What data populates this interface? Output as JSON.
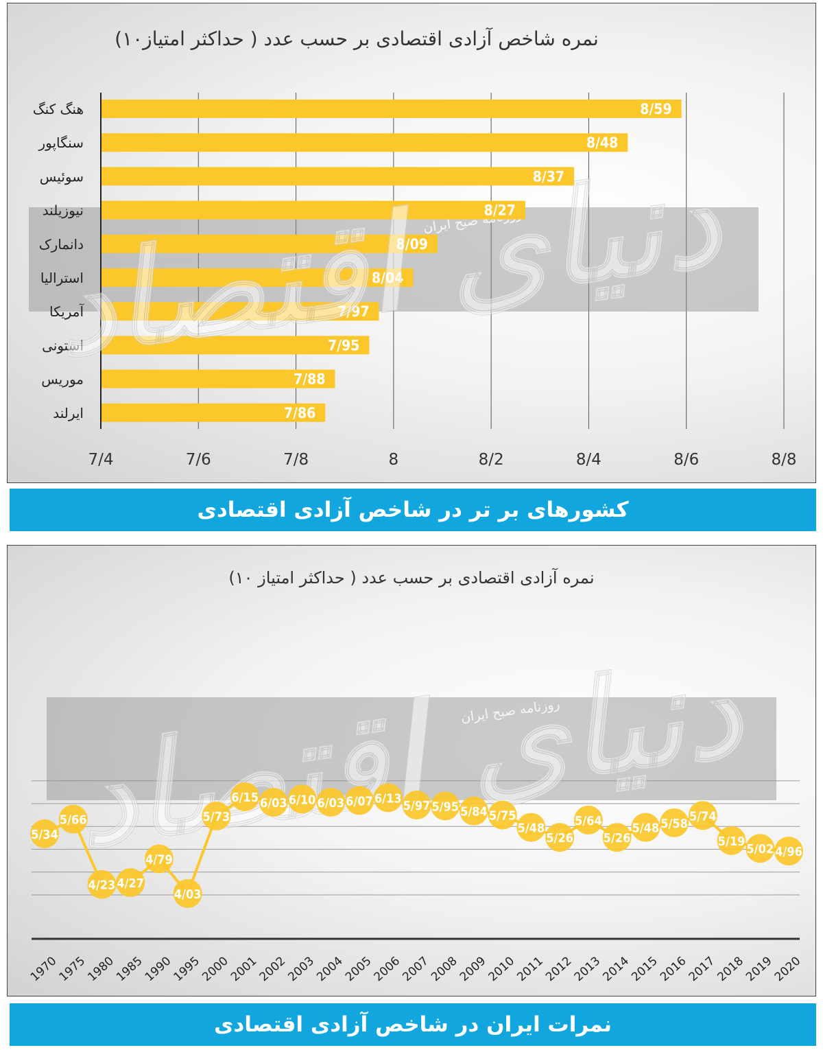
{
  "chart_data": [
    {
      "type": "bar",
      "orientation": "horizontal",
      "title": "نمره شاخص آزادی اقتصادی بر حسب عدد ( حداکثر امتیاز۱۰)",
      "categories": [
        "هنگ کنگ",
        "سنگاپور",
        "سوئیس",
        "نیوزیلند",
        "دانمارک",
        "استرالیا",
        "آمریکا",
        "استونی",
        "موریس",
        "ایرلند"
      ],
      "values": [
        8.59,
        8.48,
        8.37,
        8.27,
        8.09,
        8.04,
        7.97,
        7.95,
        7.88,
        7.86
      ],
      "value_labels": [
        "8/59",
        "8/48",
        "8/37",
        "8/27",
        "8/09",
        "8/04",
        "7/97",
        "7/95",
        "7/88",
        "7/86"
      ],
      "xlim": [
        7.4,
        8.8
      ],
      "xticks": [
        7.4,
        7.6,
        7.8,
        8.0,
        8.2,
        8.4,
        8.6,
        8.8
      ],
      "xtick_labels": [
        "7/4",
        "7/6",
        "7/8",
        "8",
        "8/2",
        "8/4",
        "8/6",
        "8/8"
      ],
      "grid": "vertical",
      "bar_color": "#fcc72b",
      "caption": "کشورهای بر تر در شاخص آزادی اقتصادی"
    },
    {
      "type": "line",
      "title": "نمره آزادی اقتصادی بر حسب عدد ( حداکثر امتیاز ۱۰)",
      "x": [
        "1970",
        "1975",
        "1980",
        "1985",
        "1990",
        "1995",
        "2000",
        "2001",
        "2002",
        "2003",
        "2004",
        "2005",
        "2006",
        "2007",
        "2008",
        "2009",
        "2010",
        "2011",
        "2012",
        "2013",
        "2014",
        "2015",
        "2016",
        "2017",
        "2018",
        "2019",
        "2020"
      ],
      "values": [
        5.34,
        5.66,
        4.23,
        4.27,
        4.79,
        4.03,
        5.73,
        6.15,
        6.03,
        6.1,
        6.03,
        6.07,
        6.13,
        5.97,
        5.95,
        5.84,
        5.75,
        5.48,
        5.26,
        5.64,
        5.26,
        5.48,
        5.58,
        5.74,
        5.19,
        5.02,
        4.96
      ],
      "value_labels": [
        "5/34",
        "5/66",
        "4/23",
        "4/27",
        "4/79",
        "4/03",
        "5/73",
        "6/15",
        "6/03",
        "6/10",
        "6/03",
        "6/07",
        "6/13",
        "5/97",
        "5/95",
        "5/84",
        "5/75",
        "5/48",
        "5/26",
        "5/64",
        "5/26",
        "5/48",
        "5/58",
        "5/74",
        "5/19",
        "5/02",
        "4/96"
      ],
      "ylim": [
        3.5,
        6.5
      ],
      "grid": "horizontal",
      "line_color": "#fcc72b",
      "caption": "نمرات ایران در شاخص آزادی اقتصادی"
    }
  ],
  "watermark": {
    "brand": "دنیای اقتصاد",
    "newspaper": "روزنامه صبح ایران"
  }
}
